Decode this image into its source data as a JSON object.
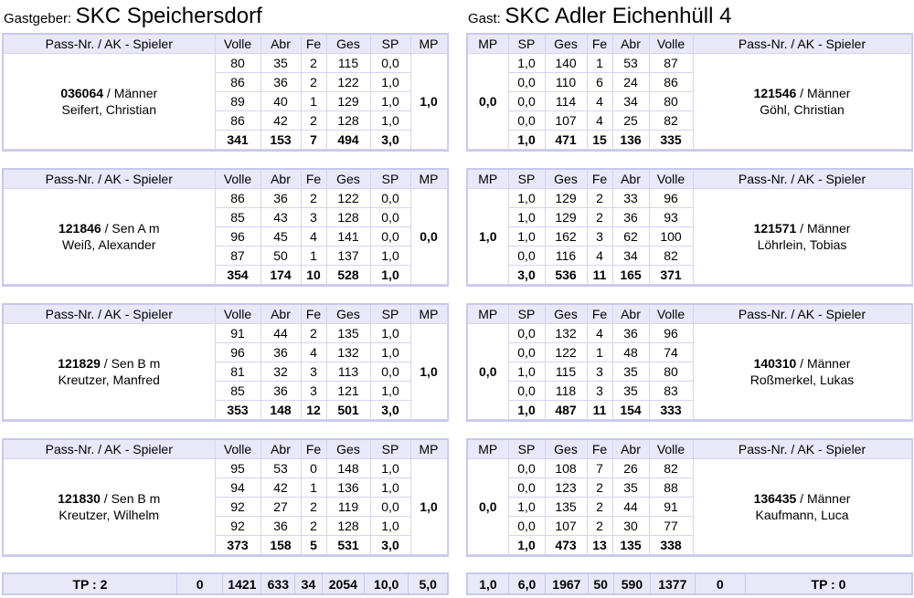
{
  "home": {
    "label": "Gastgeber:",
    "name": "SKC Speichersdorf"
  },
  "guest": {
    "label": "Gast:",
    "name": "SKC Adler Eichenhüll 4"
  },
  "headers": {
    "player": "Pass-Nr. / AK - Spieler",
    "volle": "Volle",
    "abr": "Abr",
    "fe": "Fe",
    "ges": "Ges",
    "sp": "SP",
    "mp": "MP"
  },
  "matches": [
    {
      "home": {
        "pass": "036064",
        "ak": " / Männer",
        "name": "Seifert, Christian",
        "rows": [
          {
            "volle": "80",
            "abr": "35",
            "fe": "2",
            "ges": "115",
            "sp": "0,0"
          },
          {
            "volle": "86",
            "abr": "36",
            "fe": "2",
            "ges": "122",
            "sp": "1,0"
          },
          {
            "volle": "89",
            "abr": "40",
            "fe": "1",
            "ges": "129",
            "sp": "1,0"
          },
          {
            "volle": "86",
            "abr": "42",
            "fe": "2",
            "ges": "128",
            "sp": "1,0"
          }
        ],
        "sum": {
          "volle": "341",
          "abr": "153",
          "fe": "7",
          "ges": "494",
          "sp": "3,0"
        },
        "mp": "1,0"
      },
      "guest": {
        "pass": "121546",
        "ak": " / Männer",
        "name": "Göhl, Christian",
        "rows": [
          {
            "sp": "1,0",
            "ges": "140",
            "fe": "1",
            "abr": "53",
            "volle": "87"
          },
          {
            "sp": "0,0",
            "ges": "110",
            "fe": "6",
            "abr": "24",
            "volle": "86"
          },
          {
            "sp": "0,0",
            "ges": "114",
            "fe": "4",
            "abr": "34",
            "volle": "80"
          },
          {
            "sp": "0,0",
            "ges": "107",
            "fe": "4",
            "abr": "25",
            "volle": "82"
          }
        ],
        "sum": {
          "sp": "1,0",
          "ges": "471",
          "fe": "15",
          "abr": "136",
          "volle": "335"
        },
        "mp": "0,0"
      }
    },
    {
      "home": {
        "pass": "121846",
        "ak": " / Sen A m",
        "name": "Weiß, Alexander",
        "rows": [
          {
            "volle": "86",
            "abr": "36",
            "fe": "2",
            "ges": "122",
            "sp": "0,0"
          },
          {
            "volle": "85",
            "abr": "43",
            "fe": "3",
            "ges": "128",
            "sp": "0,0"
          },
          {
            "volle": "96",
            "abr": "45",
            "fe": "4",
            "ges": "141",
            "sp": "0,0"
          },
          {
            "volle": "87",
            "abr": "50",
            "fe": "1",
            "ges": "137",
            "sp": "1,0"
          }
        ],
        "sum": {
          "volle": "354",
          "abr": "174",
          "fe": "10",
          "ges": "528",
          "sp": "1,0"
        },
        "mp": "0,0"
      },
      "guest": {
        "pass": "121571",
        "ak": " / Männer",
        "name": "Löhrlein, Tobias",
        "rows": [
          {
            "sp": "1,0",
            "ges": "129",
            "fe": "2",
            "abr": "33",
            "volle": "96"
          },
          {
            "sp": "1,0",
            "ges": "129",
            "fe": "2",
            "abr": "36",
            "volle": "93"
          },
          {
            "sp": "1,0",
            "ges": "162",
            "fe": "3",
            "abr": "62",
            "volle": "100"
          },
          {
            "sp": "0,0",
            "ges": "116",
            "fe": "4",
            "abr": "34",
            "volle": "82"
          }
        ],
        "sum": {
          "sp": "3,0",
          "ges": "536",
          "fe": "11",
          "abr": "165",
          "volle": "371"
        },
        "mp": "1,0"
      }
    },
    {
      "home": {
        "pass": "121829",
        "ak": " / Sen B m",
        "name": "Kreutzer, Manfred",
        "rows": [
          {
            "volle": "91",
            "abr": "44",
            "fe": "2",
            "ges": "135",
            "sp": "1,0"
          },
          {
            "volle": "96",
            "abr": "36",
            "fe": "4",
            "ges": "132",
            "sp": "1,0"
          },
          {
            "volle": "81",
            "abr": "32",
            "fe": "3",
            "ges": "113",
            "sp": "0,0"
          },
          {
            "volle": "85",
            "abr": "36",
            "fe": "3",
            "ges": "121",
            "sp": "1,0"
          }
        ],
        "sum": {
          "volle": "353",
          "abr": "148",
          "fe": "12",
          "ges": "501",
          "sp": "3,0"
        },
        "mp": "1,0"
      },
      "guest": {
        "pass": "140310",
        "ak": " / Männer",
        "name": "Roßmerkel, Lukas",
        "rows": [
          {
            "sp": "0,0",
            "ges": "132",
            "fe": "4",
            "abr": "36",
            "volle": "96"
          },
          {
            "sp": "0,0",
            "ges": "122",
            "fe": "1",
            "abr": "48",
            "volle": "74"
          },
          {
            "sp": "1,0",
            "ges": "115",
            "fe": "3",
            "abr": "35",
            "volle": "80"
          },
          {
            "sp": "0,0",
            "ges": "118",
            "fe": "3",
            "abr": "35",
            "volle": "83"
          }
        ],
        "sum": {
          "sp": "1,0",
          "ges": "487",
          "fe": "11",
          "abr": "154",
          "volle": "333"
        },
        "mp": "0,0"
      }
    },
    {
      "home": {
        "pass": "121830",
        "ak": " / Sen B m",
        "name": "Kreutzer, Wilhelm",
        "rows": [
          {
            "volle": "95",
            "abr": "53",
            "fe": "0",
            "ges": "148",
            "sp": "1,0"
          },
          {
            "volle": "94",
            "abr": "42",
            "fe": "1",
            "ges": "136",
            "sp": "1,0"
          },
          {
            "volle": "92",
            "abr": "27",
            "fe": "2",
            "ges": "119",
            "sp": "0,0"
          },
          {
            "volle": "92",
            "abr": "36",
            "fe": "2",
            "ges": "128",
            "sp": "1,0"
          }
        ],
        "sum": {
          "volle": "373",
          "abr": "158",
          "fe": "5",
          "ges": "531",
          "sp": "3,0"
        },
        "mp": "1,0"
      },
      "guest": {
        "pass": "136435",
        "ak": " / Männer",
        "name": "Kaufmann, Luca",
        "rows": [
          {
            "sp": "0,0",
            "ges": "108",
            "fe": "7",
            "abr": "26",
            "volle": "82"
          },
          {
            "sp": "0,0",
            "ges": "123",
            "fe": "2",
            "abr": "35",
            "volle": "88"
          },
          {
            "sp": "1,0",
            "ges": "135",
            "fe": "2",
            "abr": "44",
            "volle": "91"
          },
          {
            "sp": "0,0",
            "ges": "107",
            "fe": "2",
            "abr": "30",
            "volle": "77"
          }
        ],
        "sum": {
          "sp": "1,0",
          "ges": "473",
          "fe": "13",
          "abr": "135",
          "volle": "338"
        },
        "mp": "0,0"
      }
    }
  ],
  "totals": {
    "home": {
      "tp": "TP : 2",
      "extra": "0",
      "volle": "1421",
      "abr": "633",
      "fe": "34",
      "ges": "2054",
      "sp": "10,0",
      "mp": "5,0"
    },
    "guest": {
      "mp": "1,0",
      "sp": "6,0",
      "ges": "1967",
      "fe": "50",
      "abr": "590",
      "volle": "1377",
      "extra": "0",
      "tp": "TP : 0"
    }
  }
}
